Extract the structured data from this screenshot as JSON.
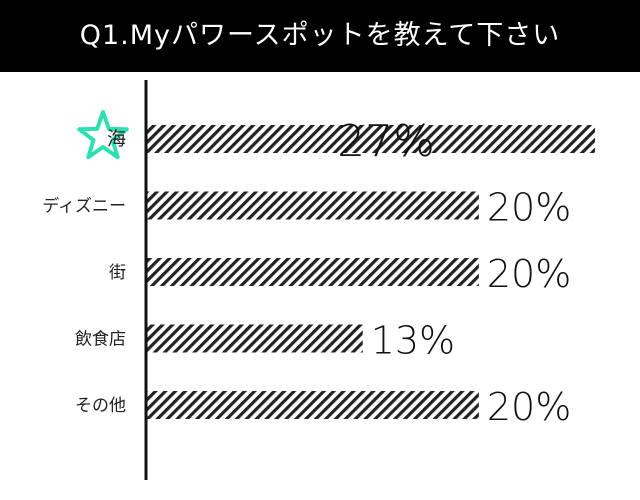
{
  "title": "Q1.Myパワースポットを教えて下さい",
  "colors": {
    "title_bar": "#000000",
    "title_text": "#ffffff",
    "bar_stripe": "#222222",
    "axis": "#111111",
    "highlight_text": "#c77ddb",
    "star": "#2de0b0"
  },
  "chart_data": {
    "type": "bar",
    "orientation": "horizontal",
    "categories": [
      "海",
      "ディズニー",
      "街",
      "飲食店",
      "その他"
    ],
    "values": [
      27,
      20,
      20,
      13,
      20
    ],
    "value_labels": [
      "27%",
      "20%",
      "20%",
      "13%",
      "20%"
    ],
    "highlight_index": 0,
    "highlight_icon": "star-icon",
    "xlim": [
      0,
      27
    ],
    "grid": false,
    "legend": "none"
  }
}
